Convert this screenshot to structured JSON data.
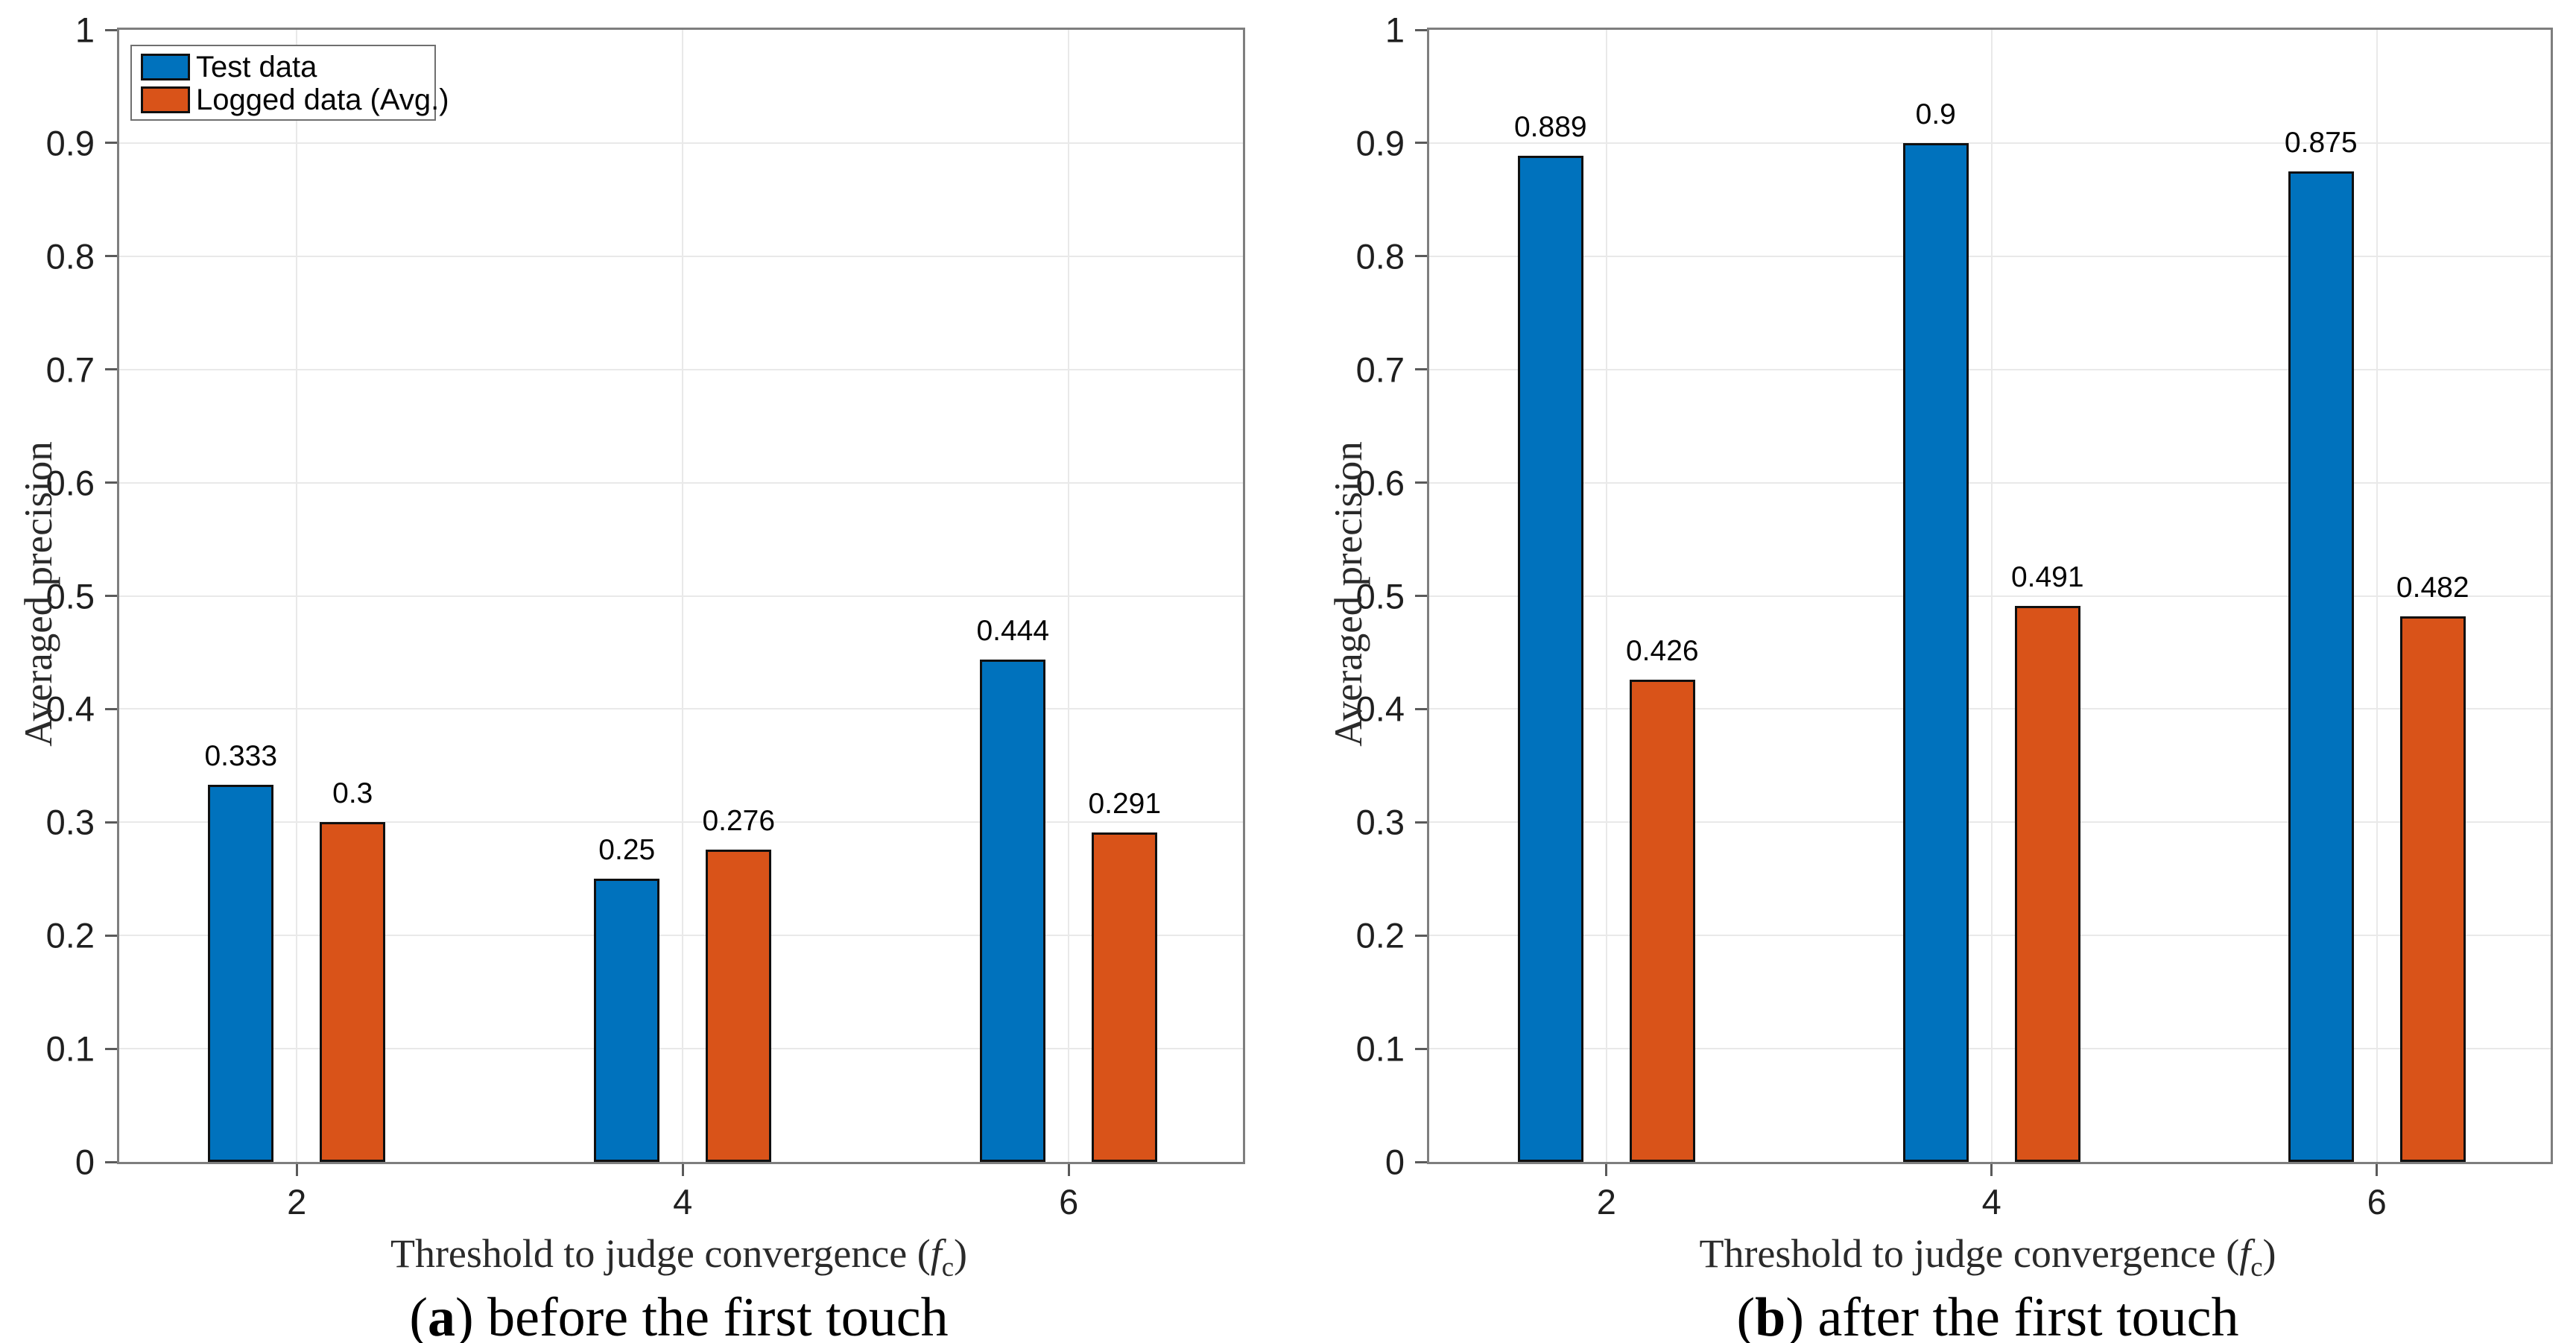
{
  "figure": {
    "background": "#ffffff",
    "colors": {
      "grid": "#e9e9e9",
      "axis_box": "#7e7e7e",
      "bar_edge": "#101010",
      "tick_text": "#1f1f1f"
    }
  },
  "chart_data": [
    {
      "type": "bar",
      "panel": "a",
      "caption_letter": "a",
      "caption_text": "before the first touch",
      "title": "",
      "xlabel": "Threshold to judge convergence (f_c)",
      "ylabel": "Averaged precision",
      "categories": [
        "2",
        "4",
        "6"
      ],
      "series": [
        {
          "name": "Test data",
          "color": "#0072BD",
          "values": [
            0.333,
            0.25,
            0.444
          ],
          "labels": [
            "0.333",
            "0.25",
            "0.444"
          ]
        },
        {
          "name": "Logged data (Avg.)",
          "color": "#D95319",
          "values": [
            0.3,
            0.276,
            0.291
          ],
          "labels": [
            "0.3",
            "0.276",
            "0.291"
          ]
        }
      ],
      "ylim": [
        0,
        1
      ],
      "ytick_step": 0.1,
      "ytick_labels": [
        "0",
        "0.1",
        "0.2",
        "0.3",
        "0.4",
        "0.5",
        "0.6",
        "0.7",
        "0.8",
        "0.9",
        "1"
      ],
      "grid": true,
      "legend": true,
      "legend_position": "top-left"
    },
    {
      "type": "bar",
      "panel": "b",
      "caption_letter": "b",
      "caption_text": "after the first touch",
      "title": "",
      "xlabel": "Threshold to judge convergence (f_c)",
      "ylabel": "Averaged precision",
      "categories": [
        "2",
        "4",
        "6"
      ],
      "series": [
        {
          "name": "Test data",
          "color": "#0072BD",
          "values": [
            0.889,
            0.9,
            0.875
          ],
          "labels": [
            "0.889",
            "0.9",
            "0.875"
          ]
        },
        {
          "name": "Logged data (Avg.)",
          "color": "#D95319",
          "values": [
            0.426,
            0.491,
            0.482
          ],
          "labels": [
            "0.426",
            "0.491",
            "0.482"
          ]
        }
      ],
      "ylim": [
        0,
        1
      ],
      "ytick_step": 0.1,
      "ytick_labels": [
        "0",
        "0.1",
        "0.2",
        "0.3",
        "0.4",
        "0.5",
        "0.6",
        "0.7",
        "0.8",
        "0.9",
        "1"
      ],
      "grid": true,
      "legend": false,
      "legend_position": null
    }
  ]
}
